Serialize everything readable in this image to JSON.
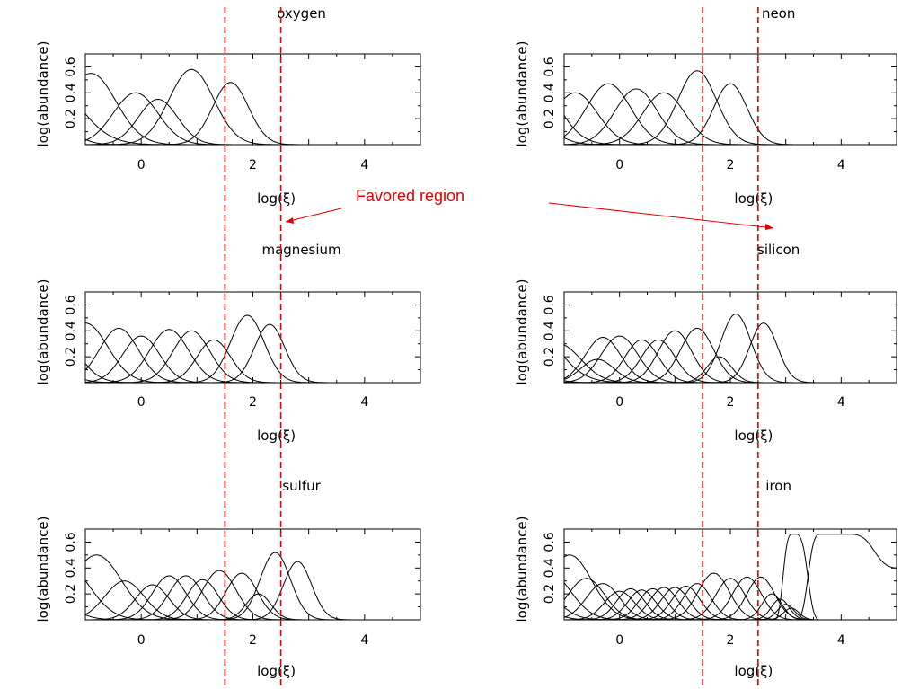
{
  "annotation": {
    "text": "Favored region",
    "color": "#e00000"
  },
  "favored_region": {
    "x_min": 1.5,
    "x_max": 2.5,
    "color": "#e00000",
    "style": "dashed"
  },
  "chart_data": [
    {
      "type": "line",
      "title": "oxygen",
      "xlabel": "log(ξ)",
      "ylabel": "log(abundance)",
      "xlim": [
        -1.0,
        5.0
      ],
      "ylim": [
        0.0,
        0.7
      ],
      "xticks": [
        0,
        2,
        4
      ],
      "yticks": [
        0.2,
        0.4,
        0.6
      ],
      "ytick_labels": [
        "0.2",
        "0.4",
        "0.6"
      ],
      "grid": false,
      "curves": [
        {
          "center": -1.8,
          "height": 0.58,
          "width": 0.6
        },
        {
          "center": -1.6,
          "height": 0.18,
          "width": 0.35
        },
        {
          "center": -0.9,
          "height": 0.55,
          "width": 0.45
        },
        {
          "center": -0.1,
          "height": 0.4,
          "width": 0.4
        },
        {
          "center": 0.3,
          "height": 0.35,
          "width": 0.35
        },
        {
          "center": 0.9,
          "height": 0.58,
          "width": 0.4
        },
        {
          "center": 1.6,
          "height": 0.48,
          "width": 0.32
        }
      ]
    },
    {
      "type": "line",
      "title": "neon",
      "xlabel": "log(ξ)",
      "ylabel": "log(abundance)",
      "xlim": [
        -1.0,
        5.0
      ],
      "ylim": [
        0.0,
        0.7
      ],
      "xticks": [
        0,
        2,
        4
      ],
      "yticks": [
        0.2,
        0.4,
        0.6
      ],
      "ytick_labels": [
        "0.2",
        "0.4",
        "0.6"
      ],
      "grid": false,
      "curves": [
        {
          "center": -1.9,
          "height": 0.4,
          "width": 0.45
        },
        {
          "center": -1.6,
          "height": 0.55,
          "width": 0.45
        },
        {
          "center": -0.8,
          "height": 0.4,
          "width": 0.4
        },
        {
          "center": -0.2,
          "height": 0.47,
          "width": 0.4
        },
        {
          "center": 0.3,
          "height": 0.43,
          "width": 0.38
        },
        {
          "center": 0.8,
          "height": 0.4,
          "width": 0.38
        },
        {
          "center": 1.4,
          "height": 0.57,
          "width": 0.35
        },
        {
          "center": 2.0,
          "height": 0.47,
          "width": 0.3
        }
      ]
    },
    {
      "type": "line",
      "title": "magnesium",
      "xlabel": "log(ξ)",
      "ylabel": "log(abundance)",
      "xlim": [
        -1.0,
        5.0
      ],
      "ylim": [
        0.0,
        0.7
      ],
      "xticks": [
        0,
        2,
        4
      ],
      "yticks": [
        0.2,
        0.4,
        0.6
      ],
      "ytick_labels": [
        "0.2",
        "0.4",
        "0.6"
      ],
      "grid": false,
      "curves": [
        {
          "center": -1.9,
          "height": 0.3,
          "width": 0.4
        },
        {
          "center": -1.6,
          "height": 0.46,
          "width": 0.4
        },
        {
          "center": -1.0,
          "height": 0.46,
          "width": 0.4
        },
        {
          "center": -0.4,
          "height": 0.42,
          "width": 0.35
        },
        {
          "center": 0.0,
          "height": 0.36,
          "width": 0.33
        },
        {
          "center": 0.5,
          "height": 0.41,
          "width": 0.35
        },
        {
          "center": 0.9,
          "height": 0.4,
          "width": 0.33
        },
        {
          "center": 1.3,
          "height": 0.33,
          "width": 0.3
        },
        {
          "center": 1.9,
          "height": 0.52,
          "width": 0.3
        },
        {
          "center": 2.3,
          "height": 0.45,
          "width": 0.27
        }
      ]
    },
    {
      "type": "line",
      "title": "silicon",
      "xlabel": "log(ξ)",
      "ylabel": "log(abundance)",
      "xlim": [
        -1.0,
        5.0
      ],
      "ylim": [
        0.0,
        0.7
      ],
      "xticks": [
        0,
        2,
        4
      ],
      "yticks": [
        0.2,
        0.4,
        0.6
      ],
      "ytick_labels": [
        "0.2",
        "0.4",
        "0.6"
      ],
      "grid": false,
      "curves": [
        {
          "center": -1.8,
          "height": 0.58,
          "width": 0.55
        },
        {
          "center": -1.9,
          "height": 0.2,
          "width": 0.4
        },
        {
          "center": -1.1,
          "height": 0.3,
          "width": 0.4
        },
        {
          "center": -0.4,
          "height": 0.18,
          "width": 0.3
        },
        {
          "center": -0.3,
          "height": 0.35,
          "width": 0.32
        },
        {
          "center": 0.0,
          "height": 0.36,
          "width": 0.33
        },
        {
          "center": 0.4,
          "height": 0.33,
          "width": 0.3
        },
        {
          "center": 0.7,
          "height": 0.33,
          "width": 0.3
        },
        {
          "center": 1.0,
          "height": 0.4,
          "width": 0.3
        },
        {
          "center": 1.4,
          "height": 0.42,
          "width": 0.3
        },
        {
          "center": 1.8,
          "height": 0.2,
          "width": 0.22
        },
        {
          "center": 2.1,
          "height": 0.53,
          "width": 0.27
        },
        {
          "center": 2.6,
          "height": 0.46,
          "width": 0.25
        }
      ]
    },
    {
      "type": "line",
      "title": "sulfur",
      "xlabel": "log(ξ)",
      "ylabel": "log(abundance)",
      "xlim": [
        -1.0,
        5.0
      ],
      "ylim": [
        0.0,
        0.7
      ],
      "xticks": [
        0,
        2,
        4
      ],
      "yticks": [
        0.2,
        0.4,
        0.6
      ],
      "ytick_labels": [
        "0.2",
        "0.4",
        "0.6"
      ],
      "grid": false,
      "curves": [
        {
          "center": -1.9,
          "height": 0.28,
          "width": 0.45
        },
        {
          "center": -1.4,
          "height": 0.45,
          "width": 0.45
        },
        {
          "center": -0.8,
          "height": 0.5,
          "width": 0.45
        },
        {
          "center": -0.3,
          "height": 0.3,
          "width": 0.35
        },
        {
          "center": 0.2,
          "height": 0.27,
          "width": 0.3
        },
        {
          "center": 0.5,
          "height": 0.34,
          "width": 0.3
        },
        {
          "center": 0.8,
          "height": 0.34,
          "width": 0.3
        },
        {
          "center": 1.1,
          "height": 0.31,
          "width": 0.28
        },
        {
          "center": 1.4,
          "height": 0.38,
          "width": 0.3
        },
        {
          "center": 1.8,
          "height": 0.36,
          "width": 0.28
        },
        {
          "center": 2.1,
          "height": 0.2,
          "width": 0.22
        },
        {
          "center": 2.4,
          "height": 0.52,
          "width": 0.27
        },
        {
          "center": 2.8,
          "height": 0.45,
          "width": 0.25
        }
      ]
    },
    {
      "type": "line",
      "title": "iron",
      "xlabel": "log(ξ)",
      "ylabel": "log(abundance)",
      "xlim": [
        -1.0,
        5.0
      ],
      "ylim": [
        0.0,
        0.7
      ],
      "xticks": [
        0,
        2,
        4
      ],
      "yticks": [
        0.2,
        0.4,
        0.6
      ],
      "ytick_labels": [
        "0.2",
        "0.4",
        "0.6"
      ],
      "grid": false,
      "curves": [
        {
          "center": -1.9,
          "height": 0.32,
          "width": 0.4
        },
        {
          "center": -1.6,
          "height": 0.3,
          "width": 0.4
        },
        {
          "center": -1.3,
          "height": 0.38,
          "width": 0.4
        },
        {
          "center": -0.9,
          "height": 0.5,
          "width": 0.4
        },
        {
          "center": -0.6,
          "height": 0.32,
          "width": 0.33
        },
        {
          "center": -0.3,
          "height": 0.28,
          "width": 0.3
        },
        {
          "center": 0.0,
          "height": 0.22,
          "width": 0.27
        },
        {
          "center": 0.2,
          "height": 0.24,
          "width": 0.25
        },
        {
          "center": 0.4,
          "height": 0.23,
          "width": 0.25
        },
        {
          "center": 0.6,
          "height": 0.24,
          "width": 0.25
        },
        {
          "center": 0.8,
          "height": 0.25,
          "width": 0.25
        },
        {
          "center": 1.0,
          "height": 0.25,
          "width": 0.25
        },
        {
          "center": 1.2,
          "height": 0.26,
          "width": 0.25
        },
        {
          "center": 1.4,
          "height": 0.28,
          "width": 0.25
        },
        {
          "center": 1.7,
          "height": 0.36,
          "width": 0.28
        },
        {
          "center": 2.0,
          "height": 0.32,
          "width": 0.26
        },
        {
          "center": 2.3,
          "height": 0.33,
          "width": 0.26
        },
        {
          "center": 2.55,
          "height": 0.33,
          "width": 0.25
        },
        {
          "center": 2.75,
          "height": 0.2,
          "width": 0.18
        },
        {
          "center": 2.9,
          "height": 0.16,
          "width": 0.16
        },
        {
          "center": 3.0,
          "height": 0.12,
          "width": 0.15
        },
        {
          "center": 3.1,
          "height": 0.09,
          "width": 0.14
        }
      ],
      "plateaus": [
        {
          "rise_start": 2.8,
          "rise_end": 3.1,
          "peak_end": 3.2,
          "fall_end": 3.6,
          "height": 0.66
        },
        {
          "rise_start": 3.2,
          "rise_end": 3.6,
          "peak_end": 4.2,
          "fall_end": 5.0,
          "height": 0.66,
          "end_level": 0.4
        }
      ]
    }
  ]
}
